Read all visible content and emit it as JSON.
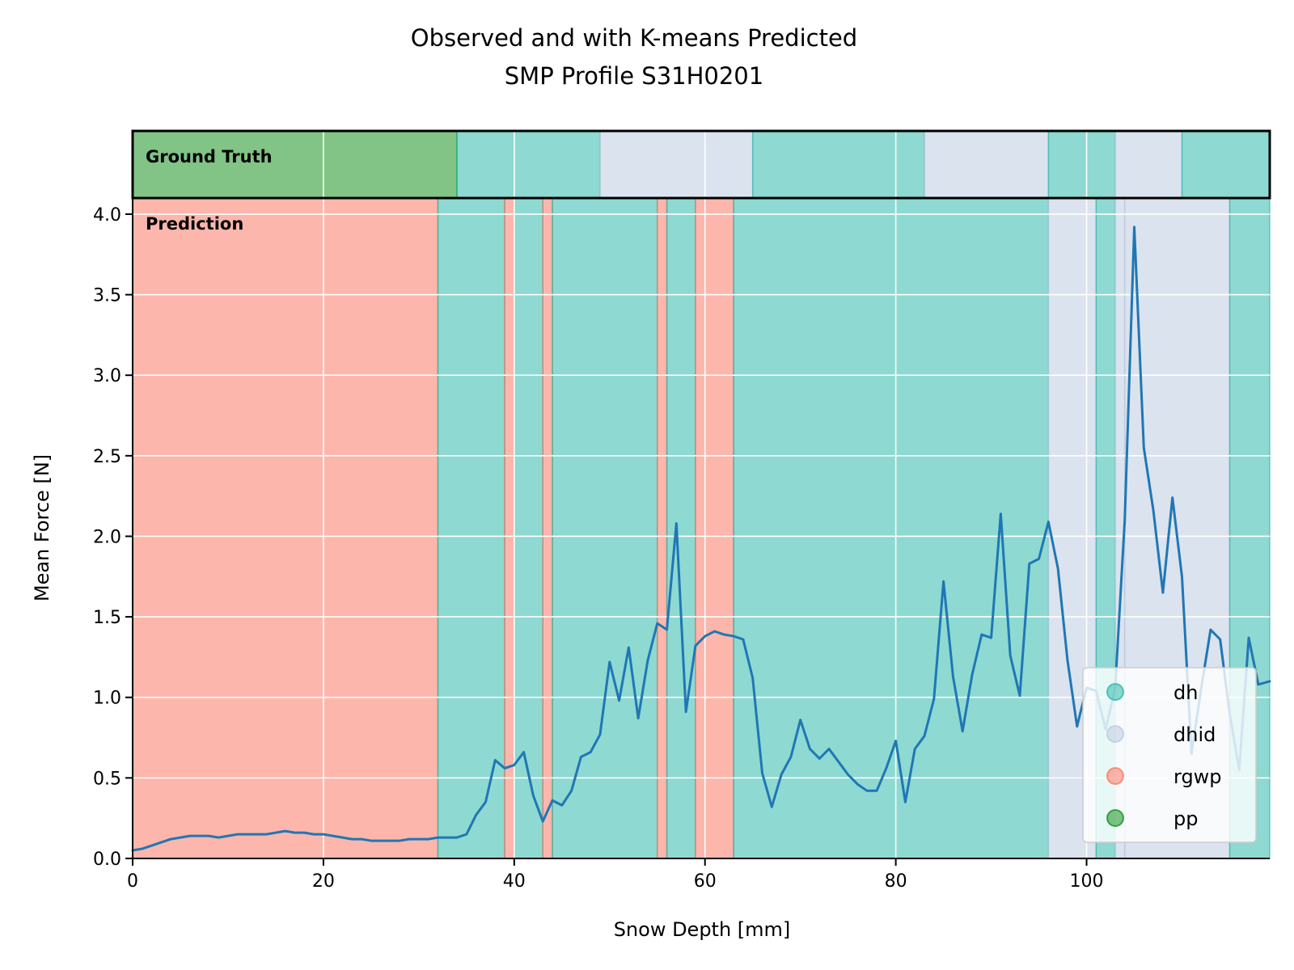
{
  "chart_data": {
    "type": "line",
    "title_line1": "Observed and with K-means Predicted",
    "title_line2": "SMP Profile S31H0201",
    "xlabel": "Snow Depth [mm]",
    "ylabel": "Mean Force [N]",
    "xlim": [
      0,
      119.2
    ],
    "ylim": [
      0,
      4.1
    ],
    "x_ticks": [
      0,
      20,
      40,
      60,
      80,
      100
    ],
    "y_ticks": [
      0.0,
      0.5,
      1.0,
      1.5,
      2.0,
      2.5,
      3.0,
      3.5,
      4.0
    ],
    "x_tick_labels": [
      "0",
      "20",
      "40",
      "60",
      "80",
      "100"
    ],
    "y_tick_labels": [
      "0.0",
      "0.5",
      "1.0",
      "1.5",
      "2.0",
      "2.5",
      "3.0",
      "3.5",
      "4.0"
    ],
    "grid": true,
    "legend_position": "lower-right",
    "ground_truth_label": "Ground Truth",
    "prediction_label": "Prediction",
    "classes": [
      {
        "name": "dh",
        "color": "#1db3a4"
      },
      {
        "name": "dhid",
        "color": "#b8c8de"
      },
      {
        "name": "rgwp",
        "color": "#fc6e57"
      },
      {
        "name": "pp",
        "color": "#038a0b"
      }
    ],
    "ground_truth_segments": [
      {
        "start": 0,
        "end": 34,
        "class": "pp"
      },
      {
        "start": 34,
        "end": 49,
        "class": "dh"
      },
      {
        "start": 49,
        "end": 65,
        "class": "dhid"
      },
      {
        "start": 65,
        "end": 83,
        "class": "dh"
      },
      {
        "start": 83,
        "end": 96,
        "class": "dhid"
      },
      {
        "start": 96,
        "end": 103,
        "class": "dh"
      },
      {
        "start": 103,
        "end": 110,
        "class": "dhid"
      },
      {
        "start": 110,
        "end": 119.2,
        "class": "dh"
      }
    ],
    "prediction_segments": [
      {
        "start": 0,
        "end": 32,
        "class": "rgwp"
      },
      {
        "start": 32,
        "end": 39,
        "class": "dh"
      },
      {
        "start": 39,
        "end": 40,
        "class": "rgwp"
      },
      {
        "start": 40,
        "end": 43,
        "class": "dh"
      },
      {
        "start": 43,
        "end": 44,
        "class": "rgwp"
      },
      {
        "start": 44,
        "end": 55,
        "class": "dh"
      },
      {
        "start": 55,
        "end": 56,
        "class": "rgwp"
      },
      {
        "start": 56,
        "end": 59,
        "class": "dh"
      },
      {
        "start": 59,
        "end": 63,
        "class": "rgwp"
      },
      {
        "start": 63,
        "end": 96,
        "class": "dh"
      },
      {
        "start": 96,
        "end": 101,
        "class": "dhid"
      },
      {
        "start": 101,
        "end": 103,
        "class": "dh"
      },
      {
        "start": 103,
        "end": 104,
        "class": "dhid"
      },
      {
        "start": 104,
        "end": 115,
        "class": "dhid"
      },
      {
        "start": 115,
        "end": 119.2,
        "class": "dh"
      }
    ],
    "series": [
      {
        "color": "#1f77b4",
        "x": [
          0,
          1,
          2,
          3,
          4,
          5,
          6,
          7,
          8,
          9,
          10,
          11,
          12,
          13,
          14,
          15,
          16,
          17,
          18,
          19,
          20,
          21,
          22,
          23,
          24,
          25,
          26,
          27,
          28,
          29,
          30,
          31,
          32,
          33,
          34,
          35,
          36,
          37,
          38,
          39,
          40,
          41,
          42,
          43,
          44,
          45,
          46,
          47,
          48,
          49,
          50,
          51,
          52,
          53,
          54,
          55,
          56,
          57,
          58,
          59,
          60,
          61,
          62,
          63,
          64,
          65,
          66,
          67,
          68,
          69,
          70,
          71,
          72,
          73,
          74,
          75,
          76,
          77,
          78,
          79,
          80,
          81,
          82,
          83,
          84,
          85,
          86,
          87,
          88,
          89,
          90,
          91,
          92,
          93,
          94,
          95,
          96,
          97,
          98,
          99,
          100,
          101,
          102,
          103,
          104,
          105,
          106,
          107,
          108,
          109,
          110,
          111,
          112,
          113,
          114,
          115,
          116,
          117,
          118,
          119.2
        ],
        "y": [
          0.05,
          0.06,
          0.08,
          0.1,
          0.12,
          0.13,
          0.14,
          0.14,
          0.14,
          0.13,
          0.14,
          0.15,
          0.15,
          0.15,
          0.15,
          0.16,
          0.17,
          0.16,
          0.16,
          0.15,
          0.15,
          0.14,
          0.13,
          0.12,
          0.12,
          0.11,
          0.11,
          0.11,
          0.11,
          0.12,
          0.12,
          0.12,
          0.13,
          0.13,
          0.13,
          0.15,
          0.27,
          0.35,
          0.61,
          0.56,
          0.58,
          0.66,
          0.39,
          0.23,
          0.36,
          0.33,
          0.42,
          0.63,
          0.66,
          0.77,
          1.22,
          0.98,
          1.31,
          0.87,
          1.23,
          1.46,
          1.42,
          2.08,
          0.91,
          1.32,
          1.38,
          1.41,
          1.39,
          1.38,
          1.36,
          1.12,
          0.53,
          0.32,
          0.52,
          0.63,
          0.86,
          0.68,
          0.62,
          0.68,
          0.6,
          0.52,
          0.46,
          0.42,
          0.42,
          0.56,
          0.73,
          0.35,
          0.68,
          0.76,
          0.99,
          1.72,
          1.13,
          0.79,
          1.14,
          1.39,
          1.37,
          2.14,
          1.26,
          1.01,
          1.83,
          1.86,
          2.09,
          1.8,
          1.23,
          0.82,
          1.06,
          1.04,
          0.8,
          1.06,
          2.1,
          3.92,
          2.55,
          2.16,
          1.65,
          2.24,
          1.75,
          0.65,
          1.05,
          1.42,
          1.36,
          0.9,
          0.55,
          1.37,
          1.08,
          1.1
        ]
      }
    ]
  }
}
